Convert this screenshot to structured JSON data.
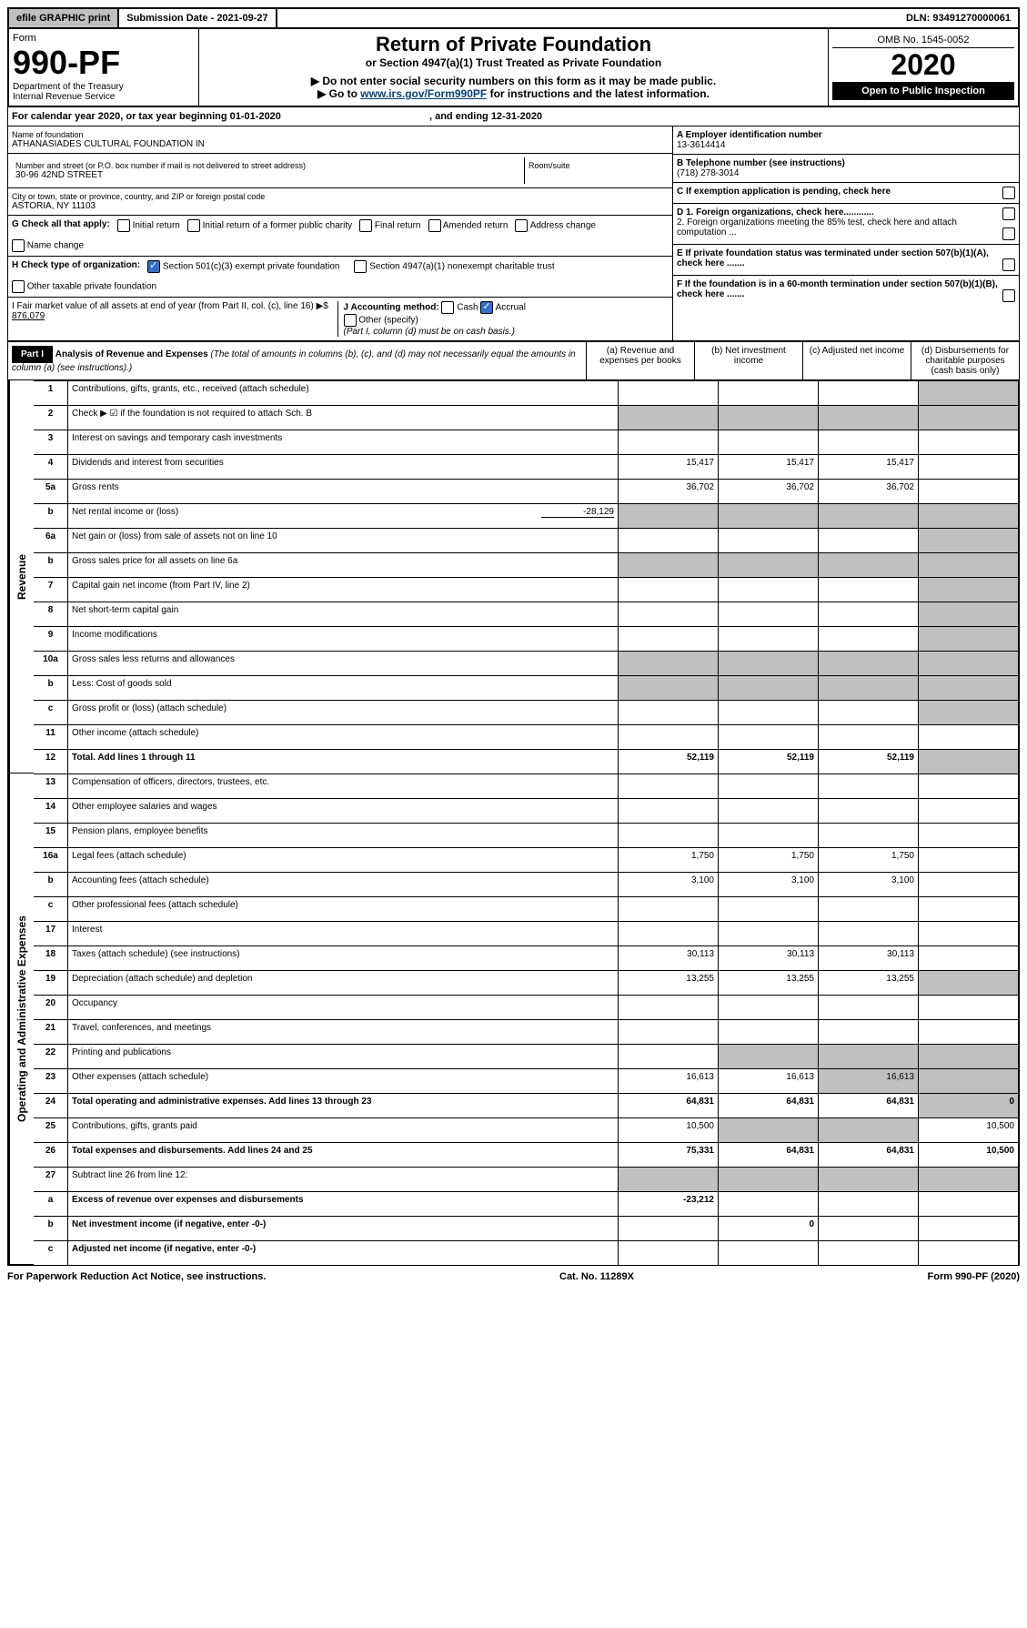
{
  "topbar": {
    "efile": "efile GRAPHIC print",
    "subdate_label": "Submission Date - 2021-09-27",
    "dln": "DLN: 93491270000061"
  },
  "header": {
    "form_word": "Form",
    "form_number": "990-PF",
    "dept": "Department of the Treasury",
    "irs": "Internal Revenue Service",
    "title": "Return of Private Foundation",
    "subtitle": "or Section 4947(a)(1) Trust Treated as Private Foundation",
    "arrow1": "▶ Do not enter social security numbers on this form as it may be made public.",
    "arrow2_pre": "▶ Go to ",
    "arrow2_link": "www.irs.gov/Form990PF",
    "arrow2_post": " for instructions and the latest information.",
    "omb": "OMB No. 1545-0052",
    "year": "2020",
    "inspection": "Open to Public Inspection"
  },
  "caly": {
    "text": "For calendar year 2020, or tax year beginning 01-01-2020",
    "mid": ", and ending 12-31-2020"
  },
  "info": {
    "name_label": "Name of foundation",
    "name": "ATHANASIADES CULTURAL FOUNDATION IN",
    "addr_label": "Number and street (or P.O. box number if mail is not delivered to street address)",
    "addr": "30-96 42ND STREET",
    "room_label": "Room/suite",
    "city_label": "City or town, state or province, country, and ZIP or foreign postal code",
    "city": "ASTORIA, NY  11103",
    "a_label": "A Employer identification number",
    "a_val": "13-3614414",
    "b_label": "B Telephone number (see instructions)",
    "b_val": "(718) 278-3014",
    "c_label": "C If exemption application is pending, check here",
    "d1": "D 1. Foreign organizations, check here............",
    "d2": "2. Foreign organizations meeting the 85% test, check here and attach computation ...",
    "e": "E  If private foundation status was terminated under section 507(b)(1)(A), check here .......",
    "f": "F  If the foundation is in a 60-month termination under section 507(b)(1)(B), check here .......",
    "g_label": "G Check all that apply:",
    "g_opts": [
      "Initial return",
      "Initial return of a former public charity",
      "Final return",
      "Amended return",
      "Address change",
      "Name change"
    ],
    "h_label": "H Check type of organization:",
    "h_opts": [
      "Section 501(c)(3) exempt private foundation",
      "Section 4947(a)(1) nonexempt charitable trust",
      "Other taxable private foundation"
    ],
    "i_label": "I Fair market value of all assets at end of year (from Part II, col. (c), line 16) ▶$",
    "i_val": "876,079",
    "j_label": "J Accounting method:",
    "j_opts": [
      "Cash",
      "Accrual",
      "Other (specify)"
    ],
    "j_note": "(Part I, column (d) must be on cash basis.)"
  },
  "part1": {
    "label": "Part I",
    "title": "Analysis of Revenue and Expenses",
    "title_note": "(The total of amounts in columns (b), (c), and (d) may not necessarily equal the amounts in column (a) (see instructions).)",
    "col_a": "(a)   Revenue and expenses per books",
    "col_b": "(b)  Net investment income",
    "col_c": "(c)  Adjusted net income",
    "col_d": "(d)  Disbursements for charitable purposes (cash basis only)",
    "side_rev": "Revenue",
    "side_exp": "Operating and Administrative Expenses",
    "rows": [
      {
        "n": "1",
        "d": "Contributions, gifts, grants, etc., received (attach schedule)"
      },
      {
        "n": "2",
        "d": "Check ▶ ☑ if the foundation is not required to attach Sch. B"
      },
      {
        "n": "3",
        "d": "Interest on savings and temporary cash investments"
      },
      {
        "n": "4",
        "d": "Dividends and interest from securities",
        "a": "15,417",
        "b": "15,417",
        "c": "15,417"
      },
      {
        "n": "5a",
        "d": "Gross rents",
        "a": "36,702",
        "b": "36,702",
        "c": "36,702"
      },
      {
        "n": "b",
        "d": "Net rental income or (loss)",
        "inline": "-28,129"
      },
      {
        "n": "6a",
        "d": "Net gain or (loss) from sale of assets not on line 10"
      },
      {
        "n": "b",
        "d": "Gross sales price for all assets on line 6a"
      },
      {
        "n": "7",
        "d": "Capital gain net income (from Part IV, line 2)"
      },
      {
        "n": "8",
        "d": "Net short-term capital gain"
      },
      {
        "n": "9",
        "d": "Income modifications"
      },
      {
        "n": "10a",
        "d": "Gross sales less returns and allowances"
      },
      {
        "n": "b",
        "d": "Less: Cost of goods sold"
      },
      {
        "n": "c",
        "d": "Gross profit or (loss) (attach schedule)"
      },
      {
        "n": "11",
        "d": "Other income (attach schedule)"
      },
      {
        "n": "12",
        "d": "Total. Add lines 1 through 11",
        "bold": true,
        "a": "52,119",
        "b": "52,119",
        "c": "52,119"
      },
      {
        "n": "13",
        "d": "Compensation of officers, directors, trustees, etc."
      },
      {
        "n": "14",
        "d": "Other employee salaries and wages"
      },
      {
        "n": "15",
        "d": "Pension plans, employee benefits"
      },
      {
        "n": "16a",
        "d": "Legal fees (attach schedule)",
        "a": "1,750",
        "b": "1,750",
        "c": "1,750"
      },
      {
        "n": "b",
        "d": "Accounting fees (attach schedule)",
        "a": "3,100",
        "b": "3,100",
        "c": "3,100"
      },
      {
        "n": "c",
        "d": "Other professional fees (attach schedule)"
      },
      {
        "n": "17",
        "d": "Interest"
      },
      {
        "n": "18",
        "d": "Taxes (attach schedule) (see instructions)",
        "a": "30,113",
        "b": "30,113",
        "c": "30,113"
      },
      {
        "n": "19",
        "d": "Depreciation (attach schedule) and depletion",
        "a": "13,255",
        "b": "13,255",
        "c": "13,255"
      },
      {
        "n": "20",
        "d": "Occupancy"
      },
      {
        "n": "21",
        "d": "Travel, conferences, and meetings"
      },
      {
        "n": "22",
        "d": "Printing and publications"
      },
      {
        "n": "23",
        "d": "Other expenses (attach schedule)",
        "a": "16,613",
        "b": "16,613",
        "c": "16,613"
      },
      {
        "n": "24",
        "d": "Total operating and administrative expenses. Add lines 13 through 23",
        "bold": true,
        "a": "64,831",
        "b": "64,831",
        "c": "64,831",
        "dd": "0"
      },
      {
        "n": "25",
        "d": "Contributions, gifts, grants paid",
        "a": "10,500",
        "dd": "10,500"
      },
      {
        "n": "26",
        "d": "Total expenses and disbursements. Add lines 24 and 25",
        "bold": true,
        "a": "75,331",
        "b": "64,831",
        "c": "64,831",
        "dd": "10,500"
      },
      {
        "n": "27",
        "d": "Subtract line 26 from line 12:"
      },
      {
        "n": "a",
        "d": "Excess of revenue over expenses and disbursements",
        "bold": true,
        "a": "-23,212"
      },
      {
        "n": "b",
        "d": "Net investment income (if negative, enter -0-)",
        "bold": true,
        "b": "0"
      },
      {
        "n": "c",
        "d": "Adjusted net income (if negative, enter -0-)",
        "bold": true
      }
    ]
  },
  "footer": {
    "left": "For Paperwork Reduction Act Notice, see instructions.",
    "mid": "Cat. No. 11289X",
    "right": "Form 990-PF (2020)"
  },
  "shaded": {
    "1": {
      "d": true
    },
    "2": {
      "a": true,
      "b": true,
      "c": true,
      "d": true
    },
    "3": {},
    "5b": {
      "a": true,
      "b": true,
      "c": true,
      "d": true
    },
    "6a": {
      "d": true
    },
    "6b": {
      "a": true,
      "b": true,
      "c": true,
      "d": true
    },
    "7": {
      "d": true
    },
    "8": {
      "d": true
    },
    "9": {
      "d": true
    },
    "10a": {
      "a": true,
      "b": true,
      "c": true,
      "d": true
    },
    "10b": {
      "a": true,
      "b": true,
      "c": true,
      "d": true
    },
    "10c": {
      "d": true
    },
    "12": {
      "d": true
    },
    "19": {
      "d": true
    },
    "25": {
      "b": true,
      "c": true
    },
    "27": {
      "a": true,
      "b": true,
      "c": true,
      "d": true
    },
    "27a": {
      "b": true,
      "c": true,
      "d": true
    },
    "27b": {
      "c": true,
      "d": true
    },
    "27c": {
      "d": true
    }
  }
}
